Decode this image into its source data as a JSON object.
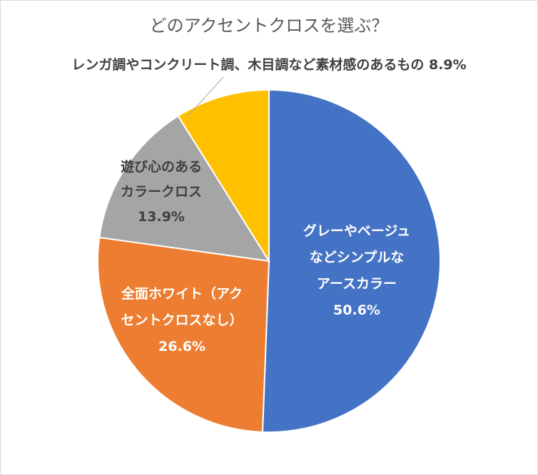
{
  "chart_data": {
    "type": "pie",
    "title": "どのアクセントクロスを選ぶ？",
    "slices": [
      {
        "label_lines": [
          "グレーやベージュ",
          "などシンプルな",
          "アースカラー"
        ],
        "value": 50.6,
        "value_text": "50.6%",
        "color": "#4472c4"
      },
      {
        "label_lines": [
          "全面ホワイト（アク",
          "セントクロスなし）"
        ],
        "value": 26.6,
        "value_text": "26.6%",
        "color": "#ed7d31"
      },
      {
        "label_lines": [
          "遊び心のある",
          "カラークロス"
        ],
        "value": 13.9,
        "value_text": "13.9%",
        "color": "#a5a5a5"
      },
      {
        "label_lines": [
          "レンガ調やコンクリート調、木目調など素材感のあるもの"
        ],
        "value": 8.9,
        "value_text": "8.9%",
        "color": "#ffc000"
      }
    ],
    "start_angle_deg": 0,
    "direction": "clockwise",
    "legend": "none"
  }
}
